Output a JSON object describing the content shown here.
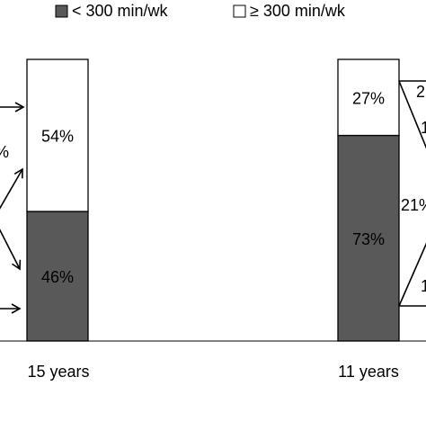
{
  "chart_data": {
    "type": "bar",
    "stacked": true,
    "percent": true,
    "categories": [
      "15 years",
      "11 years"
    ],
    "series": [
      {
        "name": "< 300 min/wk",
        "values": [
          46,
          73
        ],
        "color": "#595959"
      },
      {
        "name": "≥ 300 min/wk",
        "values": [
          54,
          27
        ],
        "color": "#ffffff"
      }
    ],
    "data_labels": [
      [
        "46%",
        "73%"
      ],
      [
        "54%",
        "27%"
      ]
    ],
    "partial_labels": {
      "left_edge": [
        "%"
      ],
      "right_edge": [
        "2",
        "21%",
        "1",
        "1"
      ]
    },
    "ylim": [
      0,
      100
    ],
    "legend": "top",
    "grid": false,
    "title": "",
    "xlabel": "",
    "ylabel": ""
  }
}
